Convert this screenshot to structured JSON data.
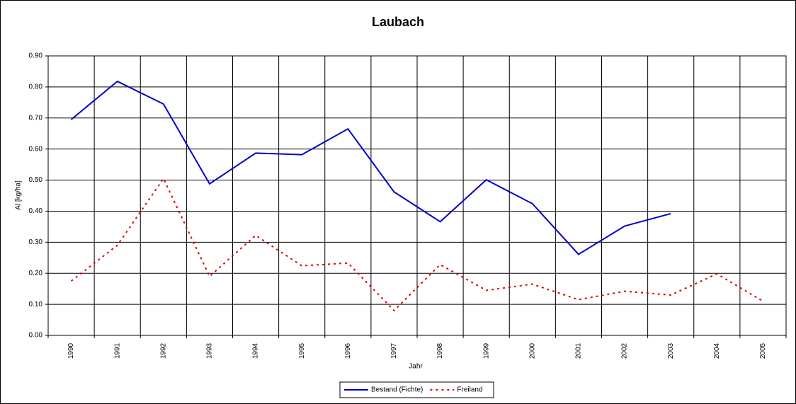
{
  "chart_data": {
    "type": "line",
    "title": "Laubach",
    "x_label": "Jahr",
    "y_label": "Al [kg/ha]",
    "categories": [
      "1990",
      "1991",
      "1992",
      "1993",
      "1994",
      "1995",
      "1996",
      "1997",
      "1998",
      "1999",
      "2000",
      "2001",
      "2002",
      "2003",
      "2004",
      "2005"
    ],
    "series": [
      {
        "name": "Bestand (Fichte)",
        "color": "#0000cc",
        "dash": "solid",
        "values": [
          0.695,
          0.818,
          0.745,
          0.488,
          0.587,
          0.582,
          0.665,
          0.462,
          0.366,
          0.501,
          0.424,
          0.261,
          0.352,
          0.392,
          null,
          null
        ]
      },
      {
        "name": "Freiland",
        "color": "#dd0000",
        "dash": "dotted",
        "values": [
          0.175,
          0.29,
          0.505,
          0.19,
          0.322,
          0.224,
          0.233,
          0.08,
          0.228,
          0.145,
          0.165,
          0.115,
          0.142,
          0.13,
          0.198,
          0.11
        ]
      }
    ],
    "ylim": [
      0,
      0.9
    ],
    "yticks": [
      {
        "value": 0,
        "label": "0.00"
      },
      {
        "value": 0.1,
        "label": "0.10"
      },
      {
        "value": 0.2,
        "label": "0.20"
      },
      {
        "value": 0.3,
        "label": "0.30"
      },
      {
        "value": 0.4,
        "label": "0.40"
      },
      {
        "value": 0.5,
        "label": "0.50"
      },
      {
        "value": 0.6,
        "label": "0.60"
      },
      {
        "value": 0.7,
        "label": "0.70"
      },
      {
        "value": 0.8,
        "label": "0.80"
      },
      {
        "value": 0.9,
        "label": "0.90"
      }
    ],
    "grid": true,
    "legend": "bottom"
  }
}
